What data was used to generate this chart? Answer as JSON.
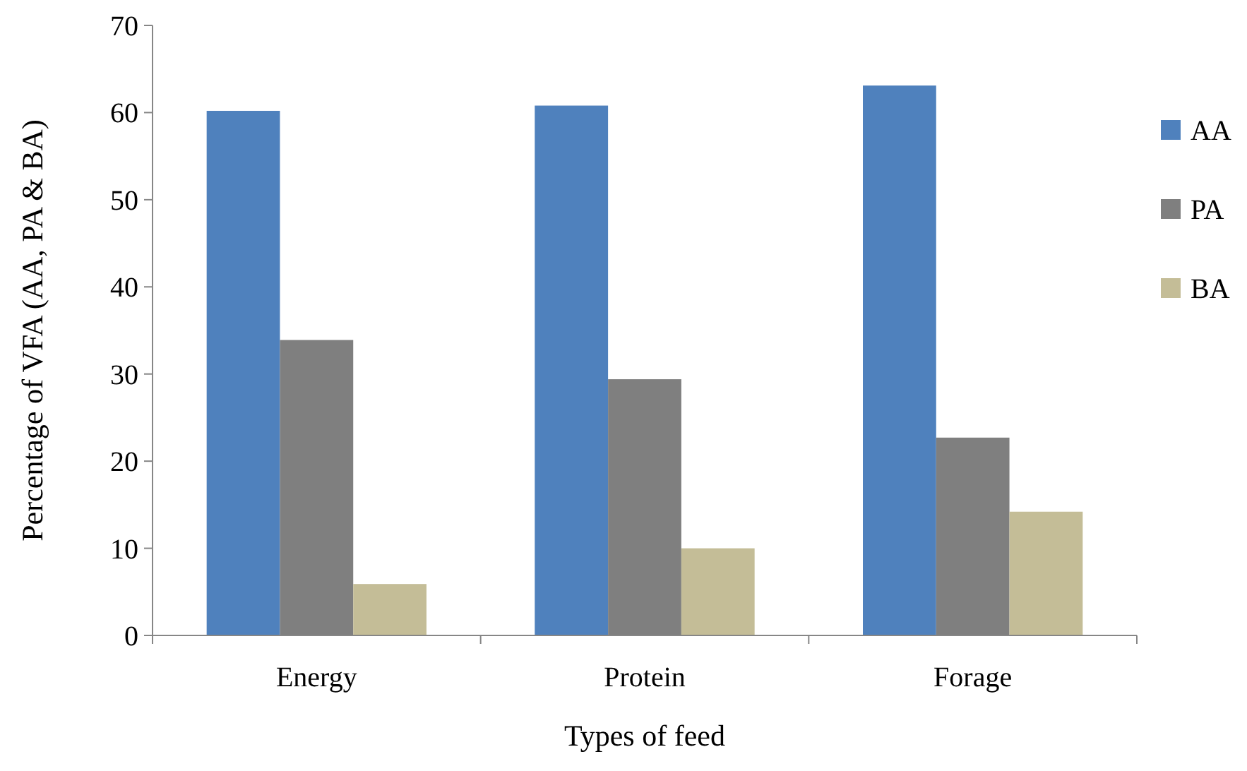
{
  "chart_data": {
    "type": "bar",
    "xlabel": "Types of feed",
    "ylabel": "Percentage of VFA (AA, PA & BA)",
    "categories": [
      "Energy",
      "Protein",
      "Forage"
    ],
    "series": [
      {
        "name": "AA",
        "color": "#4f81bd",
        "values": [
          60.2,
          60.8,
          63.1
        ]
      },
      {
        "name": "PA",
        "color": "#7f7f7f",
        "values": [
          33.9,
          29.4,
          22.7
        ]
      },
      {
        "name": "BA",
        "color": "#c4bd97",
        "values": [
          5.9,
          10,
          14.2
        ]
      }
    ],
    "ylim": [
      0,
      70
    ],
    "yticks": [
      0,
      10,
      20,
      30,
      40,
      50,
      60,
      70
    ],
    "grid": false,
    "legend": "right"
  }
}
